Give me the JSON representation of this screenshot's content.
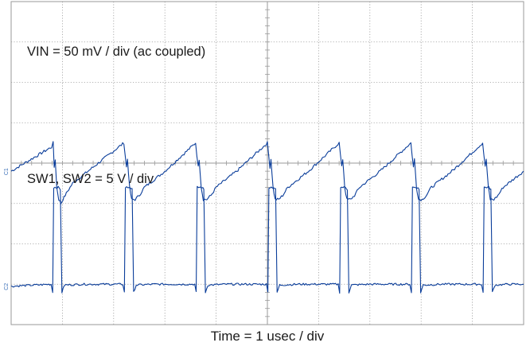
{
  "chart_data": {
    "type": "line",
    "title": "",
    "xlabel": "Time = 1 usec / div",
    "ylabel": "",
    "divisions": {
      "x": 10,
      "y": 8
    },
    "grid": true,
    "line_color": "#0a3d9a",
    "grid_color": "#9a9a9a",
    "channel_markers": [
      "C1",
      "C2"
    ],
    "series": [
      {
        "name": "VIN = 50 mV / div (ac coupled)",
        "label": "VIN = 50 mV / div (ac coupled)",
        "marker": "C1",
        "units": "div",
        "x": [
          0.0,
          0.79,
          0.82,
          0.84,
          0.86,
          0.89,
          0.93,
          0.97,
          1.01,
          1.1,
          1.2,
          1.5,
          2.2,
          2.25,
          2.27,
          2.31,
          2.35,
          2.42,
          2.5,
          2.6,
          3.0,
          3.6,
          3.65,
          3.67,
          3.71,
          3.75,
          3.82,
          3.9,
          4.0,
          4.4,
          5.0,
          5.05,
          5.07,
          5.11,
          5.15,
          5.22,
          5.3,
          5.4,
          5.8,
          6.4,
          6.45,
          6.47,
          6.51,
          6.55,
          6.62,
          6.7,
          6.8,
          7.2,
          7.8,
          7.85,
          7.87,
          7.91,
          7.95,
          8.02,
          8.1,
          8.2,
          8.6,
          9.2,
          9.25,
          9.27,
          9.31,
          9.35,
          9.42,
          9.5,
          9.6,
          9.8,
          10.0
        ],
        "values": [
          3.8,
          4.4,
          4.5,
          3.9,
          4.1,
          3.4,
          3.1,
          3.0,
          3.1,
          3.3,
          3.5,
          3.8,
          4.5,
          3.9,
          4.1,
          3.4,
          3.1,
          3.1,
          3.2,
          3.4,
          3.8,
          4.5,
          3.9,
          4.1,
          3.4,
          3.1,
          3.1,
          3.2,
          3.4,
          3.8,
          4.5,
          3.9,
          4.1,
          3.4,
          3.1,
          3.1,
          3.2,
          3.4,
          3.8,
          4.5,
          3.9,
          4.1,
          3.4,
          3.1,
          3.1,
          3.2,
          3.4,
          3.8,
          4.5,
          3.9,
          4.1,
          3.4,
          3.1,
          3.1,
          3.2,
          3.4,
          3.8,
          4.5,
          3.9,
          4.1,
          3.4,
          3.1,
          3.1,
          3.2,
          3.4,
          3.6,
          3.8
        ]
      },
      {
        "name": "SW1, SW2 = 5 V / div",
        "label": "SW1, SW2 = 5 V / div",
        "marker": "C2",
        "units": "div",
        "x": [
          0.0,
          0.78,
          0.81,
          0.83,
          0.92,
          0.96,
          0.99,
          1.04,
          1.4,
          2.18,
          2.21,
          2.23,
          2.32,
          2.36,
          2.39,
          2.44,
          2.8,
          3.58,
          3.61,
          3.63,
          3.72,
          3.76,
          3.79,
          3.84,
          4.2,
          4.98,
          5.01,
          5.03,
          5.12,
          5.16,
          5.19,
          5.24,
          5.6,
          6.38,
          6.41,
          6.43,
          6.52,
          6.56,
          6.59,
          6.64,
          7.0,
          7.78,
          7.81,
          7.83,
          7.92,
          7.96,
          7.99,
          8.04,
          8.4,
          9.18,
          9.21,
          9.23,
          9.32,
          9.36,
          9.39,
          9.44,
          9.7,
          10.0
        ],
        "values": [
          0.95,
          1.0,
          0.8,
          3.4,
          3.4,
          3.35,
          0.8,
          0.98,
          1.0,
          1.0,
          0.8,
          3.4,
          3.4,
          3.35,
          0.8,
          0.98,
          1.0,
          1.0,
          0.8,
          3.4,
          3.4,
          3.35,
          0.8,
          0.98,
          1.0,
          1.0,
          0.8,
          3.4,
          3.4,
          3.35,
          0.8,
          0.98,
          1.0,
          1.0,
          0.8,
          3.4,
          3.4,
          3.35,
          0.8,
          0.98,
          1.0,
          1.0,
          0.8,
          3.4,
          3.4,
          3.35,
          0.8,
          0.98,
          1.0,
          1.0,
          0.8,
          3.4,
          3.4,
          3.35,
          0.8,
          0.98,
          1.0,
          1.0
        ]
      }
    ]
  }
}
